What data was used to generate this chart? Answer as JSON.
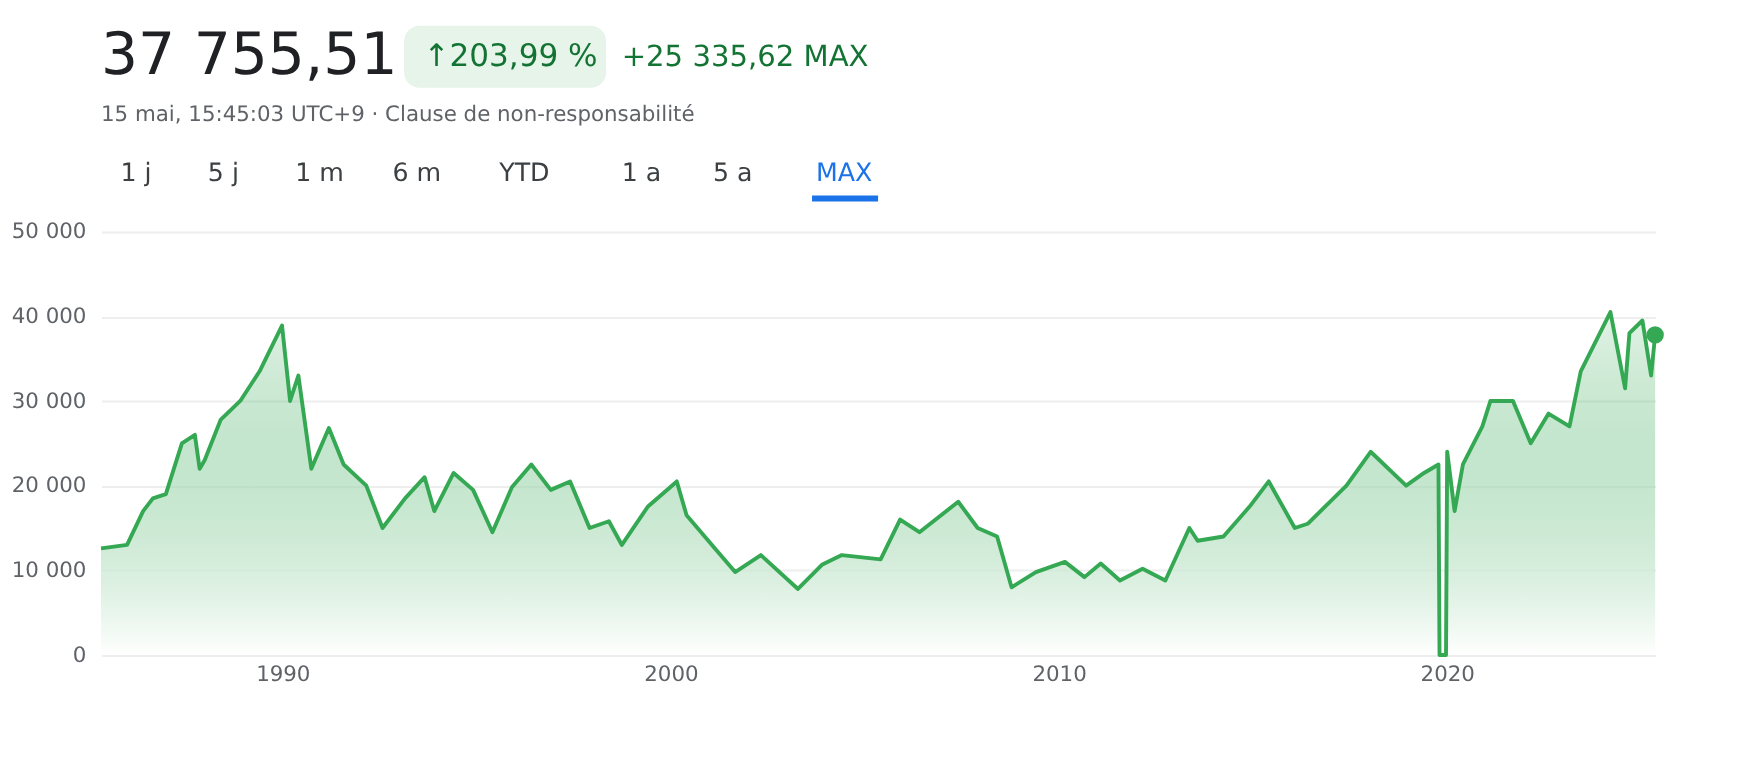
{
  "chart_data": {
    "type": "area",
    "title": "37 755,51",
    "annotations": [
      "↑203,99 %",
      "+25 335,62 MAX",
      "15 mai, 15:45:03 UTC+9 · Clause de non-responsabilité",
      "1 j",
      "5 j",
      "1 m",
      "6 m",
      "YTD",
      "1 a",
      "5 a",
      "MAX"
    ],
    "xlim": [
      "1985-05-01",
      "2025-05-15"
    ],
    "xticks": [
      "1990",
      "2000",
      "2010",
      "2020"
    ],
    "ylim": [
      0,
      50000
    ],
    "yticks": [
      {
        "value": 0,
        "label": "0"
      },
      {
        "value": 10000,
        "label": "10 000"
      },
      {
        "value": 20000,
        "label": "20 000"
      },
      {
        "value": 30000,
        "label": "30 000"
      },
      {
        "value": 40000,
        "label": "40 000"
      },
      {
        "value": 50000,
        "label": "50 000"
      }
    ],
    "grid": "y",
    "series": [
      {
        "color": "#34a853",
        "x": [
          "1985-05-01",
          "1986-01-01",
          "1986-06-01",
          "1986-09-01",
          "1987-01-01",
          "1987-06-01",
          "1987-10-01",
          "1987-11-15",
          "1988-01-01",
          "1988-06-01",
          "1988-12-01",
          "1989-06-01",
          "1989-12-29",
          "1990-03-15",
          "1990-06-01",
          "1990-10-01",
          "1991-03-15",
          "1991-08-01",
          "1992-03-01",
          "1992-08-01",
          "1993-03-01",
          "1993-09-01",
          "1993-12-01",
          "1994-06-01",
          "1994-12-01",
          "1995-06-01",
          "1995-12-01",
          "1996-06-01",
          "1996-12-01",
          "1997-06-01",
          "1997-12-01",
          "1998-06-01",
          "1998-10-01",
          "1999-06-01",
          "2000-03-01",
          "2000-06-01",
          "2001-03-01",
          "2001-09-01",
          "2002-05-01",
          "2003-04-15",
          "2003-12-01",
          "2004-06-01",
          "2005-06-01",
          "2005-12-01",
          "2006-06-01",
          "2007-06-01",
          "2007-12-01",
          "2008-06-01",
          "2008-10-15",
          "2009-06-01",
          "2010-03-01",
          "2010-09-01",
          "2011-02-01",
          "2011-08-01",
          "2012-03-01",
          "2012-10-01",
          "2013-05-15",
          "2013-08-01",
          "2014-04-01",
          "2014-12-01",
          "2015-06-01",
          "2016-02-01",
          "2016-06-01",
          "2017-06-01",
          "2018-01-15",
          "2018-12-15",
          "2019-06-01",
          "2019-10-15",
          "2019-10-25",
          "2019-12-25",
          "2020-01-05",
          "2020-03-15",
          "2020-06-01",
          "2020-12-01",
          "2021-02-15",
          "2021-09-15",
          "2022-03-01",
          "2022-08-15",
          "2023-03-01",
          "2023-06-15",
          "2024-03-20",
          "2024-08-05",
          "2024-09-15",
          "2025-01-15",
          "2025-04-07",
          "2025-05-15"
        ],
        "values": [
          12600,
          13000,
          17000,
          18500,
          19000,
          25000,
          26000,
          22000,
          23000,
          27800,
          30000,
          33500,
          38900,
          30000,
          33000,
          22000,
          26800,
          22500,
          20000,
          15000,
          18500,
          21000,
          17000,
          21500,
          19500,
          14500,
          19800,
          22500,
          19500,
          20500,
          15000,
          15800,
          13000,
          17500,
          20500,
          16500,
          12500,
          9800,
          11800,
          7800,
          10700,
          11800,
          11300,
          16000,
          14500,
          18100,
          15000,
          14000,
          8000,
          9800,
          11000,
          9200,
          10800,
          8800,
          10200,
          8800,
          15000,
          13500,
          14000,
          17500,
          20500,
          15000,
          15500,
          20000,
          24000,
          20000,
          21500,
          22500,
          0,
          0,
          24000,
          17000,
          22500,
          27000,
          30000,
          30000,
          25000,
          28500,
          27000,
          33500,
          40500,
          31500,
          38000,
          39500,
          33000,
          37800
        ]
      },
      {
        "type": "scatter",
        "color": "#34a853",
        "x": [
          "2025-05-15"
        ],
        "values": [
          37800
        ]
      }
    ]
  }
}
